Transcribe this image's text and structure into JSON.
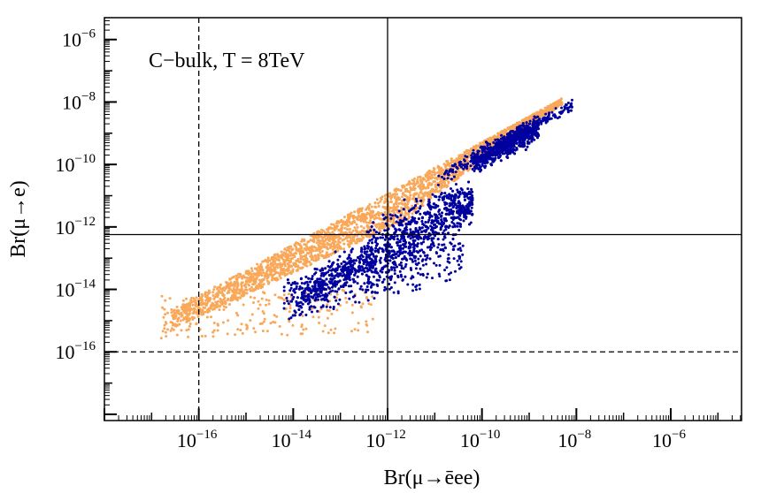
{
  "chart_data": {
    "type": "scatter",
    "annotation": "C−bulk, T = 8TeV",
    "xlabel": "Br(μ→ēee)",
    "ylabel": "Br(μ→e)",
    "xscale": "log",
    "yscale": "log",
    "xlim_exp": [
      -18,
      -4.5
    ],
    "ylim_exp": [
      -18.2,
      -5.3
    ],
    "x_ticks_exp": [
      -16,
      -14,
      -12,
      -10,
      -8,
      -6
    ],
    "y_ticks_exp": [
      -6,
      -8,
      -10,
      -12,
      -14,
      -16
    ],
    "tick_base": "10",
    "reference_lines": {
      "x_solid": 1e-12,
      "x_dashed": 1e-16,
      "y_solid": 5.7e-13,
      "y_dashed": 1e-16
    },
    "series": [
      {
        "color": "#f9a85a",
        "description_points_log": [
          [
            -16.5,
            -14.6
          ],
          [
            -16.0,
            -14.2
          ],
          [
            -15.0,
            -13.5
          ],
          [
            -14.0,
            -12.6
          ],
          [
            -13.0,
            -11.8
          ],
          [
            -12.0,
            -11.0
          ],
          [
            -11.0,
            -10.2
          ],
          [
            -10.0,
            -9.4
          ],
          [
            -9.0,
            -8.6
          ],
          [
            -8.3,
            -8.0
          ],
          [
            -16.2,
            -15.2
          ],
          [
            -15.0,
            -14.8
          ],
          [
            -14.0,
            -14.2
          ],
          [
            -13.0,
            -13.4
          ],
          [
            -12.5,
            -12.6
          ]
        ]
      },
      {
        "color": "#00009e",
        "description_points_log": [
          [
            -14.0,
            -14.6
          ],
          [
            -13.0,
            -14.0
          ],
          [
            -12.0,
            -13.2
          ],
          [
            -11.0,
            -12.3
          ],
          [
            -10.5,
            -11.5
          ],
          [
            -11.5,
            -11.0
          ],
          [
            -11.0,
            -10.0
          ],
          [
            -10.0,
            -9.8
          ],
          [
            -9.0,
            -9.2
          ],
          [
            -8.0,
            -8.5
          ],
          [
            -12.5,
            -12.8
          ],
          [
            -13.5,
            -14.5
          ]
        ]
      }
    ]
  }
}
